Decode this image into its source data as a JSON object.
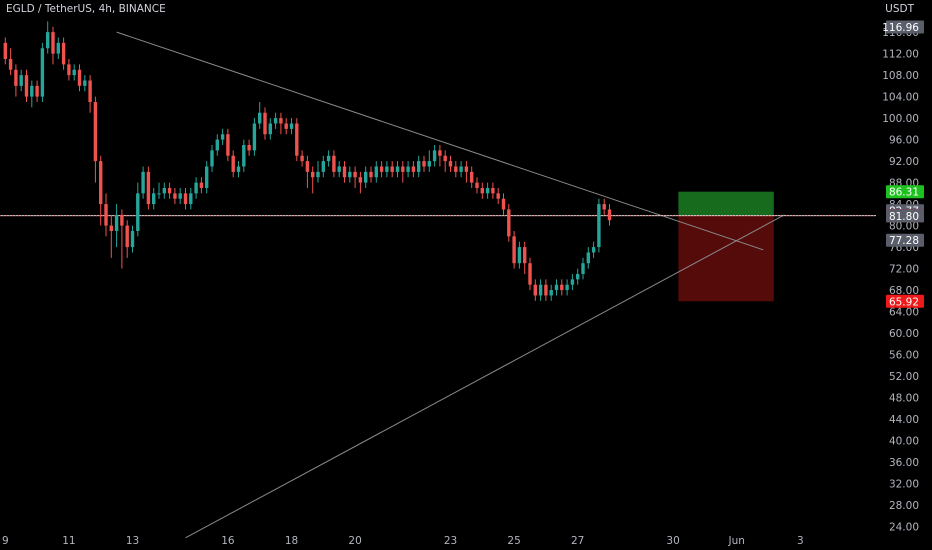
{
  "header": {
    "symbol": "EGLD / TetherUS, 4h, BINANCE",
    "currency": "USDT"
  },
  "colors": {
    "up": "#26a69a",
    "down": "#ef5350",
    "trendline": "#8a8a8a",
    "target": "#1f8f27",
    "stop": "#7a0f0f",
    "bg": "#000000"
  },
  "chart_data": {
    "type": "candlestick",
    "title": "EGLD / TetherUS, 4h, BINANCE",
    "ylabel": "USDT",
    "ylim": [
      21.5,
      119
    ],
    "y_ticks": [
      "24.00",
      "28.00",
      "32.00",
      "36.00",
      "40.00",
      "44.00",
      "48.00",
      "52.00",
      "56.00",
      "60.00",
      "64.00",
      "68.00",
      "72.00",
      "76.00",
      "80.00",
      "84.00",
      "88.00",
      "92.00",
      "96.00",
      "100.00",
      "104.00",
      "108.00",
      "112.00",
      "116.00"
    ],
    "x_ticks": [
      {
        "label": "9",
        "candle": 0
      },
      {
        "label": "11",
        "candle": 12
      },
      {
        "label": "13",
        "candle": 24
      },
      {
        "label": "16",
        "candle": 42
      },
      {
        "label": "18",
        "candle": 54
      },
      {
        "label": "20",
        "candle": 66
      },
      {
        "label": "23",
        "candle": 84
      },
      {
        "label": "25",
        "candle": 96
      },
      {
        "label": "27",
        "candle": 108
      },
      {
        "label": "30",
        "candle": 126
      },
      {
        "label": "Jun",
        "candle": 138
      },
      {
        "label": "3",
        "candle": 150
      }
    ],
    "candles": [
      [
        114,
        111,
        115,
        110
      ],
      [
        111,
        109,
        113,
        108
      ],
      [
        109,
        106,
        110,
        104
      ],
      [
        106,
        108,
        109,
        105
      ],
      [
        108,
        104,
        109,
        103
      ],
      [
        104,
        106,
        107,
        102
      ],
      [
        106,
        104,
        107,
        103
      ],
      [
        104,
        113,
        114,
        103
      ],
      [
        113,
        116,
        118,
        112
      ],
      [
        116,
        112,
        117,
        110
      ],
      [
        112,
        114,
        115,
        111
      ],
      [
        114,
        110,
        115,
        109
      ],
      [
        110,
        108,
        111,
        107
      ],
      [
        108,
        109,
        110,
        107
      ],
      [
        109,
        106,
        110,
        105
      ],
      [
        106,
        107,
        108,
        105
      ],
      [
        107,
        103,
        108,
        101
      ],
      [
        103,
        92,
        104,
        88
      ],
      [
        92,
        84,
        93,
        80
      ],
      [
        84,
        80,
        86,
        78
      ],
      [
        80,
        79,
        82,
        74
      ],
      [
        79,
        82,
        84,
        76
      ],
      [
        82,
        80,
        83,
        72
      ],
      [
        80,
        76,
        81,
        74
      ],
      [
        76,
        79,
        80,
        75
      ],
      [
        79,
        86,
        88,
        78
      ],
      [
        86,
        90,
        91,
        85
      ],
      [
        90,
        84,
        91,
        83
      ],
      [
        84,
        86,
        87,
        83
      ],
      [
        86,
        86,
        88,
        85
      ],
      [
        86,
        87,
        88,
        85
      ],
      [
        87,
        86,
        88,
        85
      ],
      [
        86,
        85,
        87,
        84
      ],
      [
        85,
        86,
        87,
        84
      ],
      [
        86,
        84,
        87,
        83
      ],
      [
        84,
        86,
        87,
        83
      ],
      [
        86,
        88,
        89,
        85
      ],
      [
        88,
        87,
        89,
        86
      ],
      [
        87,
        91,
        92,
        86
      ],
      [
        91,
        94,
        95,
        90
      ],
      [
        94,
        96,
        97,
        93
      ],
      [
        96,
        97,
        98,
        95
      ],
      [
        97,
        93,
        98,
        92
      ],
      [
        93,
        90,
        94,
        89
      ],
      [
        90,
        91,
        92,
        89
      ],
      [
        91,
        95,
        96,
        90
      ],
      [
        95,
        94,
        96,
        93
      ],
      [
        94,
        99,
        100,
        93
      ],
      [
        99,
        101,
        103,
        98
      ],
      [
        101,
        97,
        102,
        96
      ],
      [
        97,
        99,
        100,
        96
      ],
      [
        99,
        100,
        101,
        98
      ],
      [
        100,
        99,
        101,
        97
      ],
      [
        99,
        98,
        100,
        97
      ],
      [
        98,
        99,
        100,
        97
      ],
      [
        99,
        93,
        100,
        92
      ],
      [
        93,
        92,
        94,
        91
      ],
      [
        92,
        90,
        93,
        87
      ],
      [
        90,
        89,
        91,
        86
      ],
      [
        89,
        90,
        92,
        88
      ],
      [
        90,
        92,
        93,
        89
      ],
      [
        92,
        93,
        94,
        91
      ],
      [
        93,
        90,
        94,
        89
      ],
      [
        90,
        91,
        92,
        89
      ],
      [
        91,
        89,
        92,
        88
      ],
      [
        89,
        90,
        91,
        88
      ],
      [
        90,
        89,
        91,
        87
      ],
      [
        89,
        88,
        90,
        86
      ],
      [
        88,
        90,
        91,
        87
      ],
      [
        90,
        89,
        91,
        88
      ],
      [
        89,
        91,
        92,
        88
      ],
      [
        91,
        90,
        92,
        89
      ],
      [
        90,
        91,
        92,
        89
      ],
      [
        91,
        90,
        92,
        89
      ],
      [
        90,
        91,
        92,
        89
      ],
      [
        91,
        90,
        92,
        88
      ],
      [
        90,
        91,
        92,
        89
      ],
      [
        91,
        90,
        92,
        89
      ],
      [
        90,
        92,
        93,
        89
      ],
      [
        92,
        91,
        93,
        90
      ],
      [
        91,
        92,
        94,
        90
      ],
      [
        92,
        94,
        95,
        91
      ],
      [
        94,
        93,
        95,
        91
      ],
      [
        93,
        92,
        94,
        90
      ],
      [
        92,
        91,
        93,
        90
      ],
      [
        91,
        90,
        92,
        89
      ],
      [
        90,
        91,
        92,
        89
      ],
      [
        91,
        90,
        92,
        88
      ],
      [
        90,
        88,
        91,
        87
      ],
      [
        88,
        87,
        89,
        86
      ],
      [
        87,
        86,
        88,
        85
      ],
      [
        86,
        87,
        88,
        85
      ],
      [
        87,
        86,
        88,
        85
      ],
      [
        86,
        85,
        87,
        84
      ],
      [
        85,
        83,
        86,
        82
      ],
      [
        83,
        78,
        84,
        77
      ],
      [
        78,
        73,
        79,
        72
      ],
      [
        73,
        76,
        77,
        72
      ],
      [
        76,
        73,
        77,
        71
      ],
      [
        73,
        69,
        74,
        68
      ],
      [
        69,
        67,
        70,
        66
      ],
      [
        67,
        69,
        70,
        66
      ],
      [
        69,
        67,
        70,
        66
      ],
      [
        67,
        68,
        69,
        66
      ],
      [
        68,
        69,
        70,
        67
      ],
      [
        69,
        68,
        70,
        67
      ],
      [
        68,
        69,
        70,
        67
      ],
      [
        69,
        70,
        71,
        68
      ],
      [
        70,
        71,
        72,
        69
      ],
      [
        71,
        73,
        74,
        70
      ],
      [
        73,
        75,
        76,
        72
      ],
      [
        75,
        76,
        77,
        74
      ],
      [
        76,
        84,
        85,
        75
      ],
      [
        84,
        83,
        85,
        82
      ],
      [
        83,
        81,
        84,
        80
      ]
    ],
    "horizontal_line": 81.86,
    "dotted_line": 81.8,
    "trendlines": [
      {
        "name": "descending resistance",
        "from": {
          "candle": 21,
          "price": 116
        },
        "to": {
          "candle": 143,
          "price": 75.5
        }
      },
      {
        "name": "ascending support",
        "from": {
          "candle": 34,
          "price": 21.9
        },
        "to": {
          "candle": 147,
          "price": 82
        }
      }
    ],
    "position": {
      "start_candle": 127,
      "end_candle": 145,
      "entry": 81.84,
      "target": 86.31,
      "stop": 65.92
    },
    "price_labels": [
      {
        "value": 116.96,
        "text": "116.96",
        "color": "#5a5e6a"
      },
      {
        "value": 86.31,
        "text": "86.31",
        "color": "#1ec21e"
      },
      {
        "value": 82.77,
        "text": "82.77",
        "color": "#5a5e6a"
      },
      {
        "value": 81.86,
        "text": "81.86",
        "color": "#3a3d46"
      },
      {
        "value": 81.84,
        "text": "81.84",
        "color": "#f23645"
      },
      {
        "value": 81.8,
        "text": "81.80",
        "color": "#5a5e6a"
      },
      {
        "value": 77.28,
        "text": "77.28",
        "color": "#5a5e6a"
      },
      {
        "value": 65.92,
        "text": "65.92",
        "color": "#f01a1a"
      }
    ]
  }
}
